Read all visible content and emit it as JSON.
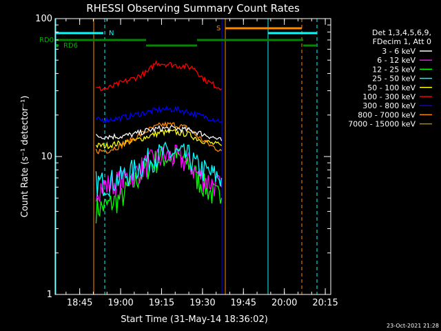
{
  "chart_data": {
    "type": "line",
    "title": "RHESSI Observing Summary Count Rates",
    "xlabel": "Start Time (31-May-14 18:36:02)",
    "ylabel": "Count Rate (s⁻¹ detector⁻¹)",
    "y_scale": "log",
    "ylim": [
      1,
      100
    ],
    "xlim": [
      "18:36",
      "20:17"
    ],
    "y_ticks": [
      "1",
      "10",
      "100"
    ],
    "x_ticks": [
      "18:45",
      "19:00",
      "19:15",
      "19:30",
      "19:45",
      "20:00",
      "20:15"
    ],
    "grid": false,
    "legend_position": "right",
    "legend_header": [
      "Det 1,3,4,5,6,9,",
      "FDecim 1, Att 0"
    ],
    "footer": "23-Oct-2021 21:28",
    "flag_labels": {
      "rd0": "RD0",
      "rd6": "RD6",
      "n": "N",
      "s": "S"
    },
    "series": [
      {
        "name": "3 - 6 keV",
        "color": "#ffffff",
        "x": [
          "18:51",
          "18:55",
          "19:00",
          "19:05",
          "19:10",
          "19:15",
          "19:20",
          "19:25",
          "19:28",
          "19:33",
          "19:37"
        ],
        "values": [
          14,
          14,
          14,
          14.5,
          15.5,
          16,
          16,
          15.5,
          15,
          14,
          13
        ]
      },
      {
        "name": "6 - 12 keV",
        "color": "#ff00ff",
        "x": [
          "18:51",
          "18:55",
          "19:00",
          "19:05",
          "19:10",
          "19:15",
          "19:20",
          "19:25",
          "19:28",
          "19:33",
          "19:37"
        ],
        "values": [
          6,
          6.2,
          6.7,
          7.5,
          9,
          10,
          10,
          9,
          7.5,
          6.5,
          6
        ]
      },
      {
        "name": "12 - 25 keV",
        "color": "#00ff00",
        "x": [
          "18:51",
          "18:55",
          "19:00",
          "19:05",
          "19:10",
          "19:15",
          "19:20",
          "19:25",
          "19:28",
          "19:33",
          "19:37"
        ],
        "values": [
          4.2,
          4.4,
          5,
          6.5,
          8.5,
          10,
          10,
          9,
          7,
          5.5,
          5
        ]
      },
      {
        "name": "25 - 50 keV",
        "color": "#00ffff",
        "x": [
          "18:51",
          "18:55",
          "19:00",
          "19:05",
          "19:10",
          "19:15",
          "19:20",
          "19:25",
          "19:28",
          "19:33",
          "19:37"
        ],
        "values": [
          6.5,
          6.5,
          7,
          8,
          9.5,
          10.5,
          10.5,
          10,
          8.5,
          7.5,
          7
        ]
      },
      {
        "name": "50 - 100 keV",
        "color": "#ffff00",
        "x": [
          "18:51",
          "18:55",
          "19:00",
          "19:05",
          "19:10",
          "19:15",
          "19:20",
          "19:25",
          "19:28",
          "19:33",
          "19:37"
        ],
        "values": [
          12,
          12,
          12.5,
          13,
          14,
          15,
          15,
          14.5,
          13.5,
          12.5,
          12
        ]
      },
      {
        "name": "100 - 300 keV",
        "color": "#ff0000",
        "x": [
          "18:51",
          "18:55",
          "19:00",
          "19:05",
          "19:10",
          "19:13",
          "19:27",
          "19:30",
          "19:33",
          "19:37"
        ],
        "values": [
          31,
          31,
          34,
          37,
          41,
          48,
          44,
          37,
          34,
          31
        ]
      },
      {
        "name": "300 - 800 keV",
        "color": "#0000ff",
        "x": [
          "18:51",
          "18:55",
          "19:00",
          "19:05",
          "19:10",
          "19:15",
          "19:20",
          "19:25",
          "19:28",
          "19:33",
          "19:37"
        ],
        "values": [
          18.5,
          18.5,
          19,
          20,
          21,
          22,
          22,
          21,
          20,
          19,
          18
        ]
      },
      {
        "name": "800 - 7000 keV",
        "color": "#ff8800",
        "x": [
          "18:51",
          "18:55",
          "19:00",
          "19:05",
          "19:10",
          "19:15",
          "19:20",
          "19:25",
          "19:28",
          "19:33",
          "19:37"
        ],
        "values": [
          11,
          11,
          12,
          13.5,
          15.5,
          17,
          17,
          16,
          14,
          12,
          11
        ]
      },
      {
        "name": "7000 - 15000 keV",
        "color": "#aa8800",
        "x": [],
        "values": []
      }
    ]
  }
}
